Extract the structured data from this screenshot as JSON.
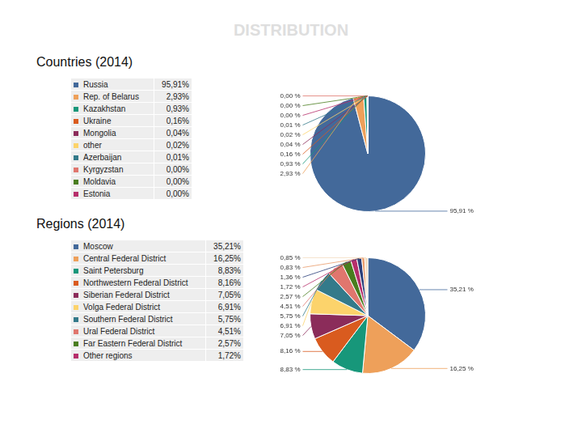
{
  "title": "DISTRIBUTION",
  "chart_data": [
    {
      "type": "pie",
      "title": "Countries (2014)",
      "legend": "left",
      "data_labels": true,
      "categories": [
        "Russia",
        "Rep. of Belarus",
        "Kazakhstan",
        "Ukraine",
        "Mongolia",
        "other",
        "Azerbaijan",
        "Kyrgyzstan",
        "Moldavia",
        "Estonia"
      ],
      "values": [
        95.91,
        2.93,
        0.93,
        0.16,
        0.04,
        0.02,
        0.01,
        0.0,
        0.0,
        0.0
      ],
      "value_labels": [
        "95,91 %",
        "2,93 %",
        "0,93 %",
        "0,16 %",
        "0,04 %",
        "0,02 %",
        "0,01 %",
        "0,00 %",
        "0,00 %",
        "0,00 %"
      ],
      "table_labels": [
        "95,91%",
        "2,93%",
        "0,93%",
        "0,16%",
        "0,04%",
        "0,02%",
        "0,01%",
        "0,00%",
        "0,00%",
        "0,00%"
      ],
      "colors": [
        "#43699a",
        "#eea05a",
        "#17977a",
        "#d95b1f",
        "#8b2c5a",
        "#fcd36b",
        "#347a8a",
        "#e0766e",
        "#4a7d1f",
        "#b62f6b"
      ]
    },
    {
      "type": "pie",
      "title": "Regions (2014)",
      "legend": "left",
      "data_labels": true,
      "categories": [
        "Moscow",
        "Central Federal District",
        "Saint Petersburg",
        "Northwestern Federal District",
        "Siberian Federal District",
        "Volga Federal District",
        "Southern Federal District",
        "Ural Federal District",
        "Far Eastern Federal District",
        "Other regions",
        null,
        null,
        null
      ],
      "values": [
        35.21,
        16.25,
        8.83,
        8.16,
        7.05,
        6.91,
        5.75,
        4.51,
        2.57,
        1.72,
        1.36,
        0.83,
        0.85
      ],
      "value_labels": [
        "35,21 %",
        "16,25 %",
        "8,83 %",
        "8,16 %",
        "7,05 %",
        "6,91 %",
        "5,75 %",
        "4,51 %",
        "2,57 %",
        "1,72 %",
        "1,36 %",
        "0,83 %",
        "0,85 %"
      ],
      "table_labels": [
        "35,21%",
        "16,25%",
        "8,83%",
        "8,16%",
        "7,05%",
        "6,91%",
        "5,75%",
        "4,51%",
        "2,57%",
        "1,72%",
        null,
        null,
        null
      ],
      "colors": [
        "#43699a",
        "#eea05a",
        "#17977a",
        "#d95b1f",
        "#8b2c5a",
        "#fcd36b",
        "#347a8a",
        "#e0766e",
        "#4a7d1f",
        "#b62f6b",
        "#2b3f7a",
        "#e89a6a",
        "#f2dcc0"
      ]
    }
  ]
}
